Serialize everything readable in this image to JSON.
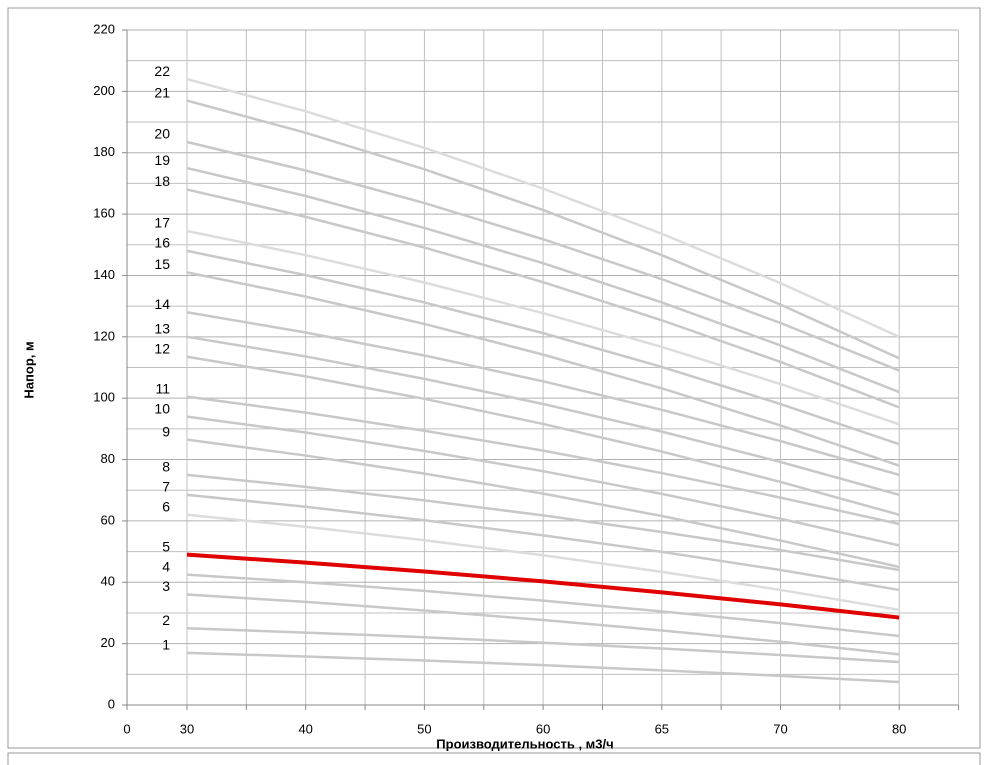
{
  "chart_data": {
    "type": "line",
    "y_label": "Напор, м",
    "x_label": "Производительность , м3/ч",
    "categories": [
      "0",
      "30",
      "40",
      "50",
      "60",
      "65",
      "70",
      "80"
    ],
    "ylim": [
      0,
      220
    ],
    "yticks": [
      0,
      20,
      40,
      60,
      80,
      100,
      120,
      140,
      160,
      180,
      200,
      220
    ],
    "grid": true,
    "series": [
      {
        "name": "1",
        "color": "#c8c8c8",
        "values": [
          null,
          17,
          15.8,
          14.5,
          13.0,
          11.3,
          9.5,
          7.5
        ]
      },
      {
        "name": "2",
        "color": "#c8c8c8",
        "values": [
          null,
          25,
          23.6,
          22.1,
          20.3,
          18.4,
          16.3,
          14
        ]
      },
      {
        "name": "3",
        "color": "#c8c8c8",
        "values": [
          null,
          36,
          33.6,
          30.8,
          27.7,
          24.3,
          20.6,
          16.5
        ]
      },
      {
        "name": "4",
        "color": "#c8c8c8",
        "values": [
          null,
          42.5,
          40,
          37.2,
          34,
          30.5,
          26.7,
          22.5
        ]
      },
      {
        "name": "5",
        "color": "#e00000",
        "values": [
          null,
          49,
          46.4,
          43.5,
          40.3,
          36.7,
          32.8,
          28.5
        ]
      },
      {
        "name": "6",
        "color": "#dcdcdc",
        "values": [
          null,
          62,
          58.1,
          53.7,
          48.8,
          43.4,
          37.5,
          31
        ]
      },
      {
        "name": "7",
        "color": "#c8c8c8",
        "values": [
          null,
          68.5,
          64.6,
          60.2,
          55.3,
          49.9,
          44,
          37.5
        ]
      },
      {
        "name": "8",
        "color": "#c8c8c8",
        "values": [
          null,
          75,
          71.1,
          66.7,
          61.8,
          56.4,
          50.5,
          44
        ]
      },
      {
        "name": "9",
        "color": "#c8c8c8",
        "values": [
          null,
          86.5,
          81.3,
          75.4,
          68.9,
          61.6,
          53.6,
          45
        ]
      },
      {
        "name": "10",
        "color": "#c8c8c8",
        "values": [
          null,
          94,
          88.8,
          82.8,
          76.2,
          68.8,
          60.7,
          52
        ]
      },
      {
        "name": "11",
        "color": "#c8c8c8",
        "values": [
          null,
          100.5,
          95.3,
          89.4,
          82.9,
          75.6,
          67.6,
          59
        ]
      },
      {
        "name": "12",
        "color": "#c8c8c8",
        "values": [
          null,
          113.5,
          107.1,
          99.8,
          91.6,
          82.6,
          72.7,
          62
        ]
      },
      {
        "name": "13",
        "color": "#c8c8c8",
        "values": [
          null,
          120,
          113.6,
          106.3,
          98.1,
          89.1,
          79.2,
          68.5
        ]
      },
      {
        "name": "14",
        "color": "#c8c8c8",
        "values": [
          null,
          128,
          121.4,
          113.9,
          105.5,
          96.2,
          86,
          75
        ]
      },
      {
        "name": "15",
        "color": "#c8c8c8",
        "values": [
          null,
          141,
          133.1,
          124.2,
          114.2,
          103.2,
          91.1,
          78
        ]
      },
      {
        "name": "16",
        "color": "#c8c8c8",
        "values": [
          null,
          148,
          140.1,
          131.2,
          121.2,
          110.2,
          98.1,
          85
        ]
      },
      {
        "name": "17",
        "color": "#dcdcdc",
        "values": [
          null,
          154.5,
          146.6,
          137.7,
          127.7,
          116.7,
          104.6,
          91.5
        ]
      },
      {
        "name": "18",
        "color": "#c8c8c8",
        "values": [
          null,
          168,
          159.1,
          149.1,
          137.8,
          125.4,
          111.8,
          97
        ]
      },
      {
        "name": "19",
        "color": "#c8c8c8",
        "values": [
          null,
          175,
          165.9,
          155.5,
          144,
          131.2,
          117.2,
          102
        ]
      },
      {
        "name": "20",
        "color": "#c8c8c8",
        "values": [
          null,
          183.5,
          174.2,
          163.6,
          151.8,
          138.8,
          124.5,
          109
        ]
      },
      {
        "name": "21",
        "color": "#c8c8c8",
        "values": [
          null,
          197,
          186.5,
          174.6,
          161.3,
          146.6,
          130.5,
          113
        ]
      },
      {
        "name": "22",
        "color": "#dcdcdc",
        "values": [
          null,
          204,
          193.5,
          181.6,
          168.3,
          153.6,
          137.5,
          120
        ]
      }
    ]
  }
}
